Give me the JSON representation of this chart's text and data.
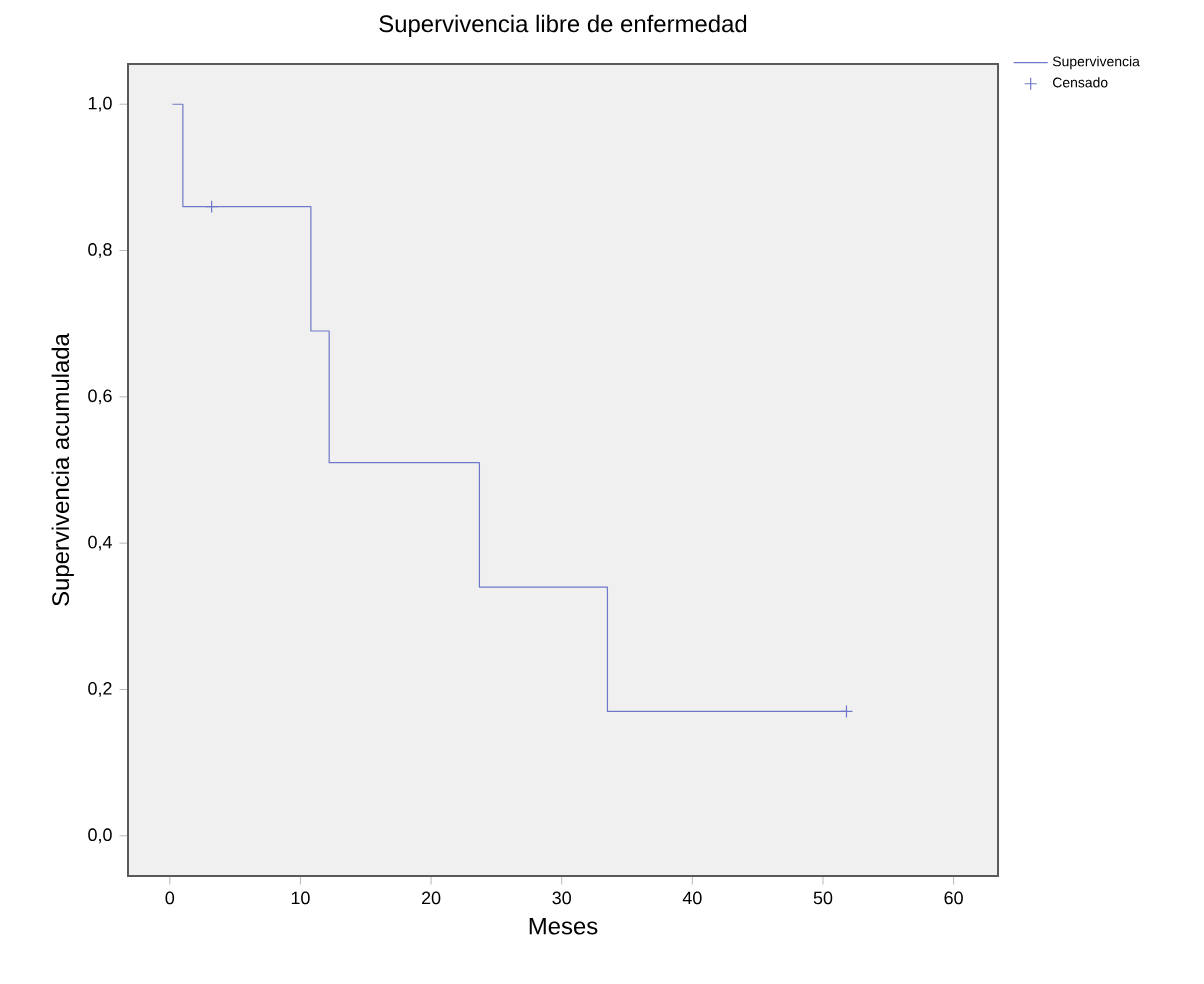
{
  "chart_data": {
    "type": "step",
    "title": "Supervivencia libre de enfermedad",
    "xlabel": "Meses",
    "ylabel": "Supervivencia acumulada",
    "series": [
      {
        "name": "Supervivencia",
        "color": "#6f78c8",
        "x": [
          0.2,
          1.0,
          10.8,
          12.2,
          23.7,
          33.5,
          51.8
        ],
        "values": [
          1.0,
          0.86,
          0.69,
          0.51,
          0.34,
          0.17,
          0.17
        ]
      },
      {
        "name": "Censado",
        "type": "scatter",
        "marker": "cross",
        "color": "#6f78c8",
        "x": [
          3.2,
          51.8
        ],
        "values": [
          0.86,
          0.17
        ]
      }
    ],
    "xlim": [
      -3.2,
      63.4
    ],
    "ylim": [
      -0.055,
      1.055
    ],
    "xticks": [
      0,
      10,
      20,
      30,
      40,
      50,
      60
    ],
    "yticks": [
      {
        "value": 0.0,
        "label": "0,0"
      },
      {
        "value": 0.2,
        "label": "0,2"
      },
      {
        "value": 0.4,
        "label": "0,4"
      },
      {
        "value": 0.6,
        "label": "0,6"
      },
      {
        "value": 0.8,
        "label": "0,8"
      },
      {
        "value": 1.0,
        "label": "1,0"
      }
    ],
    "grid": false,
    "legend": "top right"
  }
}
